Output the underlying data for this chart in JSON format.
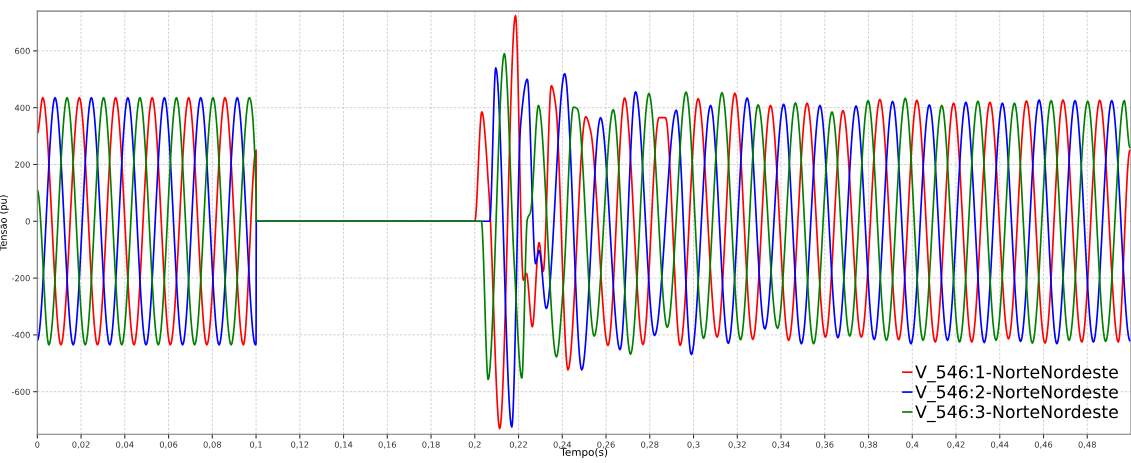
{
  "chart_data": {
    "type": "line",
    "xlabel": "Tempo(s)",
    "ylabel": "Tensão (pu)",
    "xlim": [
      0,
      0.5
    ],
    "ylim": [
      -750,
      740
    ],
    "xticks": [
      0,
      {
        "value": 0.02,
        "label": "0,02"
      },
      {
        "value": 0.04,
        "label": "0,04"
      },
      {
        "value": 0.06,
        "label": "0,06"
      },
      {
        "value": 0.08,
        "label": "0,08"
      },
      {
        "value": 0.1,
        "label": "0,1"
      },
      {
        "value": 0.12,
        "label": "0,12"
      },
      {
        "value": 0.14,
        "label": "0,14"
      },
      {
        "value": 0.16,
        "label": "0,16"
      },
      {
        "value": 0.18,
        "label": "0,18"
      },
      {
        "value": 0.2,
        "label": "0,2"
      },
      {
        "value": 0.22,
        "label": "0,22"
      },
      {
        "value": 0.24,
        "label": "0,24"
      },
      {
        "value": 0.26,
        "label": "0,26"
      },
      {
        "value": 0.28,
        "label": "0,28"
      },
      {
        "value": 0.3,
        "label": "0,3"
      },
      {
        "value": 0.32,
        "label": "0,32"
      },
      {
        "value": 0.34,
        "label": "0,34"
      },
      {
        "value": 0.36,
        "label": "0,36"
      },
      {
        "value": 0.38,
        "label": "0,38"
      },
      {
        "value": 0.4,
        "label": "0,4"
      },
      {
        "value": 0.42,
        "label": "0,42"
      },
      {
        "value": 0.44,
        "label": "0,44"
      },
      {
        "value": 0.46,
        "label": "0,46"
      },
      {
        "value": 0.48,
        "label": "0,48"
      }
    ],
    "yticks": [
      -600,
      -400,
      -200,
      0,
      200,
      400,
      600
    ],
    "grid": true,
    "legend": "bottom right",
    "series": [
      {
        "name": "V_546:1-NorteNordeste",
        "color": "#ff0000",
        "x": [
          0,
          0.0025,
          0.0108,
          0.0192,
          0.0275,
          0.0358,
          0.0442,
          0.0525,
          0.0608,
          0.0692,
          0.0775,
          0.0858,
          0.0942,
          0.1,
          0.1001,
          0.2,
          0.2032,
          0.2065,
          0.2114,
          0.2186,
          0.2222,
          0.2236,
          0.2263,
          0.2294,
          0.2313,
          0.235,
          0.237,
          0.2426,
          0.2507,
          0.253,
          0.2609,
          0.2685,
          0.2769,
          0.2842,
          0.2872,
          0.2939,
          0.3021,
          0.3108,
          0.3189,
          0.3271,
          0.3352,
          0.3435,
          0.3519,
          0.3603,
          0.3683,
          0.3767,
          0.3852,
          0.3938,
          0.4021,
          0.4105,
          0.4189,
          0.4272,
          0.4355,
          0.444,
          0.4522,
          0.4607,
          0.4689,
          0.4775,
          0.4857,
          0.4942,
          0.4995
        ],
        "values": [
          310,
          435,
          -435,
          435,
          -435,
          435,
          -435,
          435,
          -435,
          435,
          -435,
          435,
          -435,
          250,
          0,
          0,
          385,
          98,
          -730,
          724,
          -207,
          -184,
          -371,
          -75,
          -176,
          477,
          408,
          -523,
          368,
          316,
          -437,
          434,
          -434,
          365,
          365,
          -437,
          432,
          -408,
          451,
          -416,
          408,
          -419,
          416,
          -408,
          390,
          -408,
          429,
          -417,
          426,
          -425,
          416,
          -425,
          419,
          -414,
          424,
          -429,
          427,
          -425,
          426,
          -425,
          250
        ]
      },
      {
        "name": "V_546:2-NorteNordeste",
        "color": "#0000ff",
        "x": [
          0,
          0.0081,
          0.0164,
          0.0247,
          0.0331,
          0.0414,
          0.0497,
          0.0581,
          0.0664,
          0.0747,
          0.0831,
          0.0914,
          0.0997,
          0.1,
          0.1001,
          0.2068,
          0.2096,
          0.2169,
          0.221,
          0.224,
          0.2278,
          0.2294,
          0.2327,
          0.2411,
          0.2489,
          0.2575,
          0.2664,
          0.2735,
          0.2822,
          0.2921,
          0.299,
          0.3078,
          0.3159,
          0.3245,
          0.3326,
          0.3412,
          0.3493,
          0.3578,
          0.366,
          0.3743,
          0.3826,
          0.391,
          0.3994,
          0.4078,
          0.4161,
          0.4245,
          0.4329,
          0.4412,
          0.4495,
          0.458,
          0.4661,
          0.4744,
          0.4828,
          0.4912,
          0.4995
        ],
        "values": [
          -420,
          435,
          -435,
          435,
          -435,
          435,
          -435,
          435,
          -435,
          435,
          -435,
          435,
          -435,
          -430,
          0,
          0,
          540,
          -724,
          345,
          500,
          -149,
          -103,
          -307,
          520,
          -523,
          365,
          -452,
          456,
          -402,
          391,
          -469,
          408,
          -430,
          434,
          -379,
          412,
          -431,
          408,
          -410,
          406,
          -416,
          422,
          -431,
          410,
          -419,
          419,
          -427,
          416,
          -423,
          427,
          -431,
          425,
          -425,
          425,
          -420
        ]
      },
      {
        "name": "V_546:3-NorteNordeste",
        "color": "#008000",
        "x": [
          0,
          0.0053,
          0.0136,
          0.0219,
          0.0303,
          0.0386,
          0.0469,
          0.0553,
          0.0636,
          0.0719,
          0.0803,
          0.0886,
          0.0969,
          0.1,
          0.1001,
          0.203,
          0.2061,
          0.2135,
          0.218,
          0.2215,
          0.224,
          0.2255,
          0.2291,
          0.2373,
          0.2404,
          0.2451,
          0.2469,
          0.2546,
          0.2633,
          0.2712,
          0.2796,
          0.288,
          0.2966,
          0.3046,
          0.313,
          0.3215,
          0.3295,
          0.3384,
          0.3466,
          0.3549,
          0.3633,
          0.3714,
          0.3798,
          0.3882,
          0.3968,
          0.4049,
          0.4135,
          0.4216,
          0.43,
          0.4383,
          0.4467,
          0.4549,
          0.4635,
          0.4717,
          0.4802,
          0.4884,
          0.4969,
          0.4995
        ],
        "values": [
          110,
          -435,
          435,
          -435,
          435,
          -435,
          435,
          -435,
          435,
          -435,
          435,
          -435,
          435,
          100,
          0,
          0,
          -557,
          590,
          -144,
          -552,
          6,
          34,
          408,
          -477,
          -236,
          402,
          396,
          -404,
          393,
          -468,
          450,
          -373,
          455,
          -412,
          453,
          -417,
          410,
          -377,
          417,
          -431,
          385,
          -404,
          425,
          -419,
          433,
          -419,
          408,
          -425,
          423,
          -419,
          416,
          -429,
          425,
          -419,
          423,
          -423,
          425,
          260
        ]
      }
    ]
  }
}
